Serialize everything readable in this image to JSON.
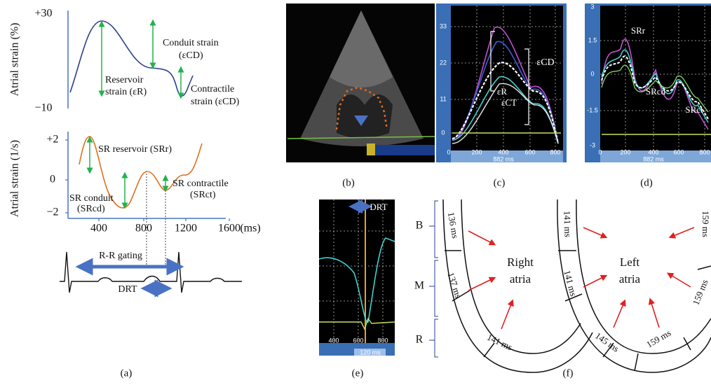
{
  "panel_a": {
    "caption": "(a)",
    "strain": {
      "y_label": "Atrial strain (%)",
      "y_ticks": [
        "+30",
        "−10"
      ],
      "conduit": [
        "Conduit strain",
        "(εCD)"
      ],
      "reservoir": [
        "Reservoir",
        "strain (εR)"
      ],
      "contractile": [
        "Contractile",
        "strain (εCD)"
      ]
    },
    "strain_rate": {
      "y_label": "Atrial strain (1/s)",
      "y_ticks": [
        "+2",
        "0",
        "−2"
      ],
      "x_ticks": [
        "400",
        "800",
        "1200",
        "1600"
      ],
      "x_unit": "(ms)",
      "reservoir": "SR reservoir (SRr)",
      "conduit": [
        "SR conduit",
        "(SRcd)"
      ],
      "contractile": [
        "SR contractile",
        "(SRct)"
      ]
    },
    "ecg": {
      "gating": "R-R gating",
      "drt": "DRT"
    }
  },
  "panel_b": {
    "caption": "(b)"
  },
  "panel_c": {
    "caption": "(c)",
    "y_ticks": [
      "33",
      "22",
      "11",
      "0"
    ],
    "x_ticks": [
      "0",
      "200",
      "400",
      "600",
      "800"
    ],
    "duration": "882 ms",
    "labels": [
      "εCD",
      "εR",
      "εCT"
    ]
  },
  "panel_d": {
    "caption": "(d)",
    "y_ticks": [
      "3",
      "1.5",
      "0",
      "-1.5",
      "-3"
    ],
    "x_ticks": [
      "0",
      "200",
      "400",
      "600",
      "800"
    ],
    "duration": "882 ms",
    "labels": [
      "SRr",
      "SRcd",
      "SRct"
    ]
  },
  "panel_e": {
    "caption": "(e)",
    "label": "DRT",
    "x_ticks": [
      "400",
      "600",
      "800"
    ],
    "duration": "120 ms"
  },
  "panel_f": {
    "caption": "(f)",
    "levels": [
      "B",
      "M",
      "R"
    ],
    "right_atrium": [
      "Right",
      "atria"
    ],
    "left_atrium": [
      "Left",
      "atria"
    ],
    "right_segments": [
      "136 ms",
      "137 ms",
      "141 ms"
    ],
    "left_segments": [
      "141 ms",
      "141 ms",
      "145 ms",
      "159 ms",
      "159 ms",
      "159 ms"
    ]
  }
}
